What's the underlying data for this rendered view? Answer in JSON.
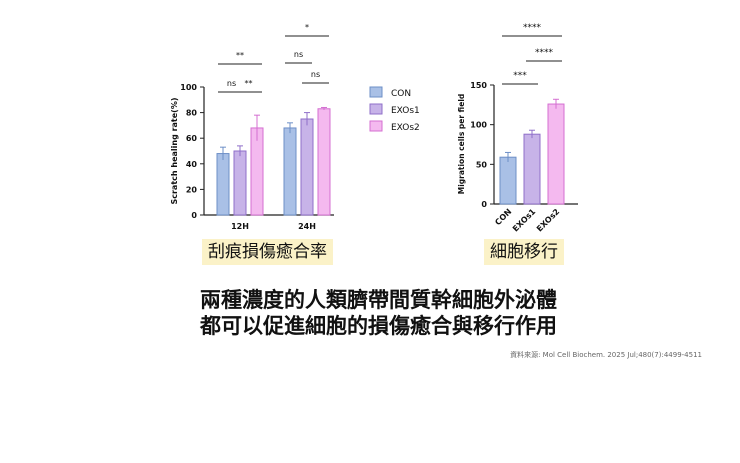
{
  "colors": {
    "con": "#a9c0e6",
    "con_edge": "#6d8fc7",
    "exos1": "#c7b3e8",
    "exos1_edge": "#8f6fc9",
    "exos2": "#f4b9ef",
    "exos2_edge": "#d46fd1",
    "caption_bg": "#fbf2c8"
  },
  "chart_data": [
    {
      "type": "bar",
      "ylabel": "Scratch healing rate(%)",
      "categories": [
        "12H",
        "24H"
      ],
      "ylim": [
        0,
        100
      ],
      "yticks": [
        "0",
        "20",
        "40",
        "60",
        "80",
        "100"
      ],
      "series": [
        {
          "name": "CON",
          "values": [
            48,
            68
          ],
          "errors": [
            5,
            4
          ]
        },
        {
          "name": "EXOs1",
          "values": [
            50,
            75
          ],
          "errors": [
            4,
            5
          ]
        },
        {
          "name": "EXOs2",
          "values": [
            68,
            83
          ],
          "errors": [
            10,
            1
          ]
        }
      ],
      "significance": [
        {
          "group": 0,
          "from": 0,
          "to": 1,
          "label": "ns",
          "level": 0
        },
        {
          "group": 0,
          "from": 1,
          "to": 2,
          "label": "**",
          "level": 0
        },
        {
          "group": 0,
          "from": 0,
          "to": 2,
          "label": "**",
          "level": 1
        },
        {
          "group": 1,
          "from": 0,
          "to": 1,
          "label": "ns",
          "level": 1
        },
        {
          "group": 1,
          "from": 1,
          "to": 2,
          "label": "ns",
          "level": 0
        },
        {
          "group": 1,
          "from": 0,
          "to": 2,
          "label": "*",
          "level": 2
        }
      ],
      "legend": [
        "CON",
        "EXOs1",
        "EXOs2"
      ],
      "legend_position": "right",
      "caption": "刮痕損傷癒合率"
    },
    {
      "type": "bar",
      "ylabel": "Migration cells per field",
      "categories": [
        "CON",
        "EXOs1",
        "EXOs2"
      ],
      "ylim": [
        0,
        150
      ],
      "yticks": [
        "0",
        "50",
        "100",
        "150"
      ],
      "values": [
        59,
        88,
        126
      ],
      "errors": [
        6,
        5,
        6
      ],
      "significance": [
        {
          "from": 0,
          "to": 1,
          "label": "***",
          "level": 0
        },
        {
          "from": 1,
          "to": 2,
          "label": "****",
          "level": 1
        },
        {
          "from": 0,
          "to": 2,
          "label": "****",
          "level": 2
        }
      ],
      "caption": "細胞移行"
    }
  ],
  "headline": {
    "line1": "兩種濃度的人類臍帶間質幹細胞外泌體",
    "line2": "都可以促進細胞的損傷癒合與移行作用"
  },
  "source": "資料來源: Mol Cell Biochem. 2025 Jul;480(7):4499-4511"
}
